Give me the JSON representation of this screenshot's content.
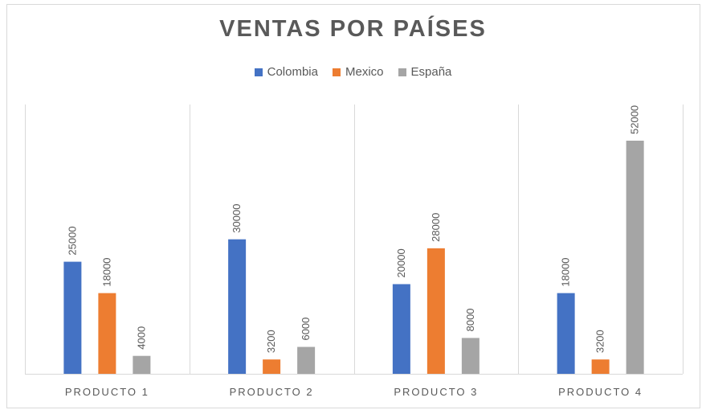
{
  "chart_data": {
    "type": "bar",
    "title": "VENTAS POR PAÍSES",
    "categories": [
      "PRODUCTO 1",
      "PRODUCTO 2",
      "PRODUCTO 3",
      "PRODUCTO 4"
    ],
    "series": [
      {
        "name": "Colombia",
        "color": "#4472c4",
        "values": [
          25000,
          30000,
          20000,
          18000
        ]
      },
      {
        "name": "Mexico",
        "color": "#ed7d31",
        "values": [
          18000,
          3200,
          28000,
          3200
        ]
      },
      {
        "name": "España",
        "color": "#a5a5a5",
        "values": [
          4000,
          6000,
          8000,
          52000
        ]
      }
    ],
    "data_labels": true,
    "ylim": [
      0,
      55000
    ],
    "grid": "vertical category separators",
    "legend": "top"
  }
}
